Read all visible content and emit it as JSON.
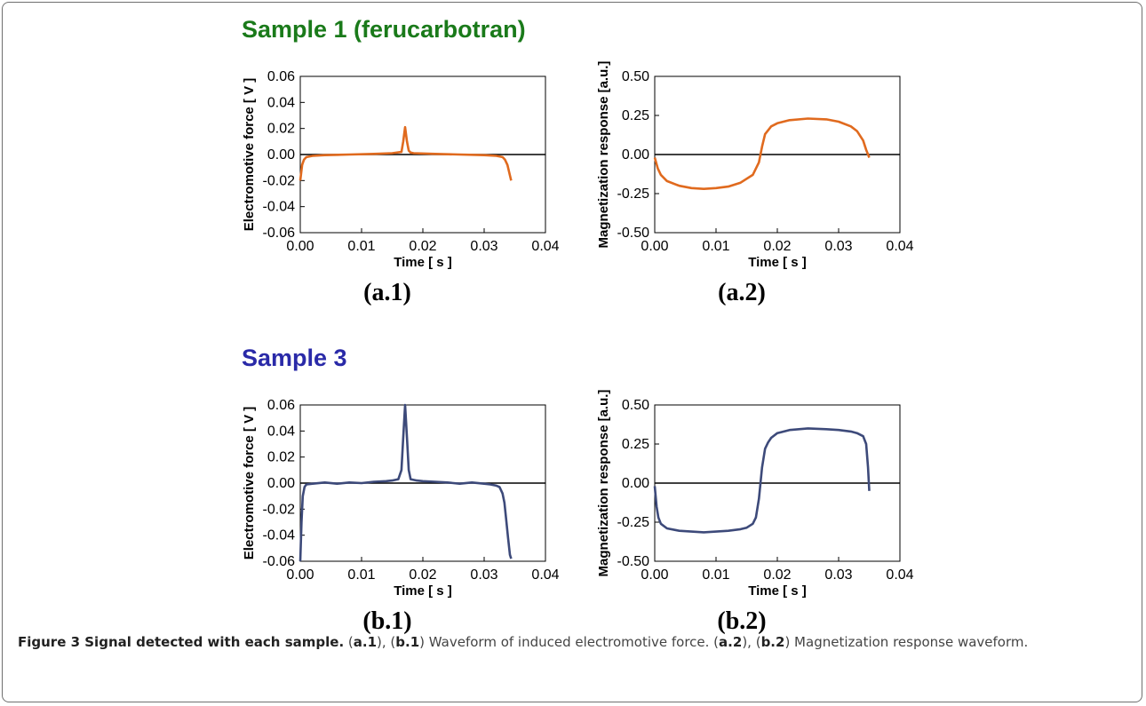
{
  "samples": [
    {
      "title": "Sample 1 (ferucarbotran)",
      "color": "#1a7a1a"
    },
    {
      "title": "Sample 3",
      "color": "#2a2aa8"
    }
  ],
  "caption": {
    "figure": "Figure 3 Signal detected with each sample.",
    "p1": " (",
    "ref_a1": "a.1",
    "p2": "), (",
    "ref_b1": "b.1",
    "p3": ") Waveform of induced electromotive force. (",
    "ref_a2": "a.2",
    "p4": "), (",
    "ref_b2": "b.2",
    "p5": ") Magnetization response waveform."
  },
  "chart_data": [
    {
      "id": "a.1",
      "panel_label": "(a.1)",
      "type": "line",
      "xlabel": "Time [ s ]",
      "ylabel": "Electromotive force [ V ]",
      "xlim": [
        0,
        0.04
      ],
      "ylim": [
        -0.06,
        0.06
      ],
      "xticks": [
        "0.00",
        "0.01",
        "0.02",
        "0.03",
        "0.04"
      ],
      "yticks": [
        "0.06",
        "0.04",
        "0.02",
        "0.00",
        "-0.02",
        "-0.04",
        "-0.06"
      ],
      "color": "#e06a1e",
      "x": [
        0,
        0.0003,
        0.0006,
        0.001,
        0.002,
        0.004,
        0.008,
        0.012,
        0.015,
        0.0165,
        0.0168,
        0.0171,
        0.0174,
        0.0177,
        0.018,
        0.0185,
        0.022,
        0.026,
        0.03,
        0.032,
        0.033,
        0.0334,
        0.0338,
        0.0342,
        0.0344
      ],
      "y": [
        -0.02,
        -0.008,
        -0.004,
        -0.002,
        -0.001,
        -0.0005,
        0.0,
        0.0005,
        0.001,
        0.002,
        0.01,
        0.021,
        0.01,
        0.003,
        0.0015,
        0.001,
        0.0005,
        0.0,
        -0.0005,
        -0.001,
        -0.002,
        -0.004,
        -0.008,
        -0.016,
        -0.02
      ]
    },
    {
      "id": "a.2",
      "panel_label": "(a.2)",
      "type": "line",
      "xlabel": "Time [ s ]",
      "ylabel": "Magnetization response [a.u.]",
      "xlim": [
        0,
        0.04
      ],
      "ylim": [
        -0.5,
        0.5
      ],
      "xticks": [
        "0.00",
        "0.01",
        "0.02",
        "0.03",
        "0.04"
      ],
      "yticks": [
        "0.50",
        "0.25",
        "0.00",
        "-0.25",
        "-0.50"
      ],
      "color": "#e06a1e",
      "x": [
        0,
        0.0005,
        0.001,
        0.002,
        0.004,
        0.006,
        0.008,
        0.01,
        0.012,
        0.014,
        0.016,
        0.017,
        0.0175,
        0.018,
        0.019,
        0.02,
        0.022,
        0.025,
        0.028,
        0.03,
        0.032,
        0.033,
        0.034,
        0.0345,
        0.035
      ],
      "y": [
        -0.02,
        -0.09,
        -0.13,
        -0.17,
        -0.2,
        -0.215,
        -0.22,
        -0.215,
        -0.205,
        -0.18,
        -0.13,
        -0.05,
        0.05,
        0.13,
        0.18,
        0.2,
        0.22,
        0.23,
        0.225,
        0.21,
        0.18,
        0.15,
        0.09,
        0.03,
        -0.02
      ]
    },
    {
      "id": "b.1",
      "panel_label": "(b.1)",
      "type": "line",
      "xlabel": "Time [ s ]",
      "ylabel": "Electromotive force [ V ]",
      "xlim": [
        0,
        0.04
      ],
      "ylim": [
        -0.06,
        0.06
      ],
      "xticks": [
        "0.00",
        "0.01",
        "0.02",
        "0.03",
        "0.04"
      ],
      "yticks": [
        "0.06",
        "0.04",
        "0.02",
        "0.00",
        "-0.02",
        "-0.04",
        "-0.06"
      ],
      "color": "#3d4a7a",
      "x": [
        0,
        0.0002,
        0.0004,
        0.0007,
        0.001,
        0.002,
        0.004,
        0.006,
        0.008,
        0.01,
        0.012,
        0.014,
        0.015,
        0.016,
        0.0165,
        0.0168,
        0.0171,
        0.0174,
        0.0177,
        0.018,
        0.019,
        0.02,
        0.022,
        0.024,
        0.026,
        0.028,
        0.03,
        0.031,
        0.032,
        0.0325,
        0.033,
        0.0333,
        0.0336,
        0.0339,
        0.0342,
        0.0344
      ],
      "y": [
        -0.06,
        -0.03,
        -0.01,
        -0.003,
        -0.001,
        -0.0005,
        0.0005,
        -0.0005,
        0.0005,
        0.0,
        0.001,
        0.0015,
        0.002,
        0.003,
        0.01,
        0.035,
        0.06,
        0.035,
        0.01,
        0.003,
        0.002,
        0.0015,
        0.001,
        0.0005,
        -0.0005,
        0.0005,
        -0.0005,
        -0.001,
        -0.002,
        -0.003,
        -0.008,
        -0.015,
        -0.028,
        -0.042,
        -0.055,
        -0.058
      ]
    },
    {
      "id": "b.2",
      "panel_label": "(b.2)",
      "type": "line",
      "xlabel": "Time [ s ]",
      "ylabel": "Magnetization response [a.u.]",
      "xlim": [
        0,
        0.04
      ],
      "ylim": [
        -0.5,
        0.5
      ],
      "xticks": [
        "0.00",
        "0.01",
        "0.02",
        "0.03",
        "0.04"
      ],
      "yticks": [
        "0.50",
        "0.25",
        "0.00",
        "-0.25",
        "-0.50"
      ],
      "color": "#3d4a7a",
      "x": [
        0,
        0.0003,
        0.0006,
        0.001,
        0.002,
        0.004,
        0.006,
        0.008,
        0.01,
        0.012,
        0.014,
        0.015,
        0.016,
        0.0165,
        0.017,
        0.0175,
        0.018,
        0.0185,
        0.019,
        0.02,
        0.022,
        0.025,
        0.028,
        0.03,
        0.032,
        0.033,
        0.034,
        0.0345,
        0.0348,
        0.035
      ],
      "y": [
        -0.02,
        -0.15,
        -0.22,
        -0.26,
        -0.29,
        -0.305,
        -0.31,
        -0.315,
        -0.31,
        -0.305,
        -0.295,
        -0.285,
        -0.26,
        -0.22,
        -0.1,
        0.1,
        0.22,
        0.26,
        0.29,
        0.32,
        0.34,
        0.35,
        0.345,
        0.34,
        0.33,
        0.32,
        0.3,
        0.25,
        0.1,
        -0.05
      ]
    }
  ]
}
